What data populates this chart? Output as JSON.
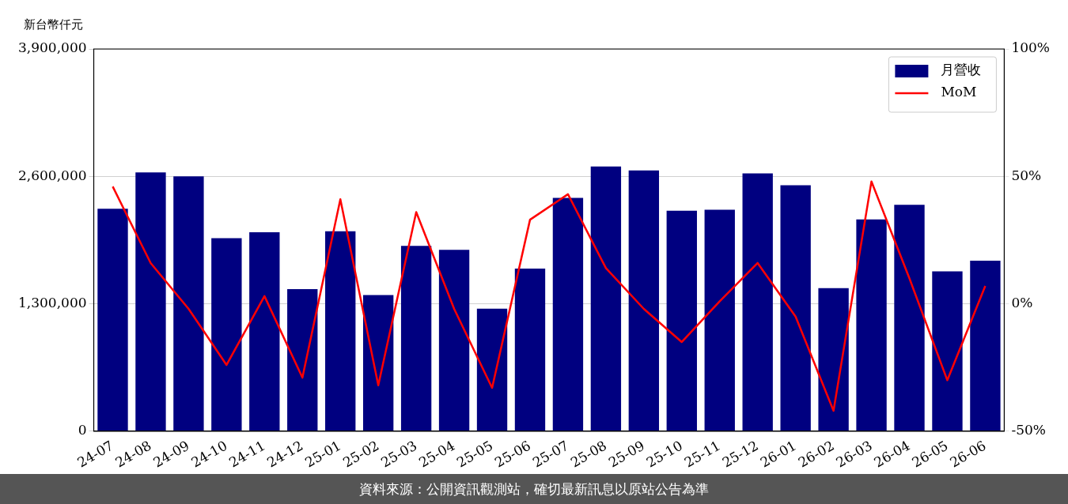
{
  "chart_data": {
    "type": "bar",
    "ylabel": "新台幣仟元",
    "categories": [
      "24-07",
      "24-08",
      "24-09",
      "24-10",
      "24-11",
      "24-12",
      "25-01",
      "25-02",
      "25-03",
      "25-04",
      "25-05",
      "25-06",
      "25-07",
      "25-08",
      "25-09",
      "25-10",
      "25-11",
      "25-12",
      "26-01",
      "26-02",
      "26-03",
      "26-04",
      "26-05",
      "26-06"
    ],
    "series": [
      {
        "name": "月營收",
        "color": "#000080",
        "values": [
          2270000,
          2640000,
          2600000,
          1970000,
          2030000,
          1450000,
          2040000,
          1390000,
          1890000,
          1850000,
          1250000,
          1660000,
          2380000,
          2700000,
          2660000,
          2250000,
          2260000,
          2630000,
          2510000,
          1460000,
          2160000,
          2310000,
          1630000,
          1740000
        ]
      },
      {
        "name": "MoM",
        "type": "line",
        "axis": "y2",
        "color": "#ff0000",
        "values": [
          46,
          16,
          -2,
          -24,
          3,
          -29,
          41,
          -32,
          36,
          -2,
          -33,
          33,
          43,
          14,
          -2,
          -15,
          1,
          16,
          -5,
          -42,
          48,
          10,
          -30,
          7
        ]
      }
    ],
    "ylim": [
      0,
      3900000
    ],
    "yticks": [
      {
        "value": 0,
        "label": "0"
      },
      {
        "value": 1300000,
        "label": "1,300,000"
      },
      {
        "value": 2600000,
        "label": "2,600,000"
      },
      {
        "value": 3900000,
        "label": "3,900,000"
      }
    ],
    "y2lim": [
      -50,
      100
    ],
    "y2ticks": [
      {
        "value": -50,
        "label": "-50%"
      },
      {
        "value": 0,
        "label": "0%"
      },
      {
        "value": 50,
        "label": "50%"
      },
      {
        "value": 100,
        "label": "100%"
      }
    ],
    "grid": "y",
    "legend": "top right",
    "marker": "none",
    "line_style": "solid",
    "annotations": [
      "資料來源：公開資訊觀測站，確切最新訊息以原站公告為準"
    ]
  }
}
